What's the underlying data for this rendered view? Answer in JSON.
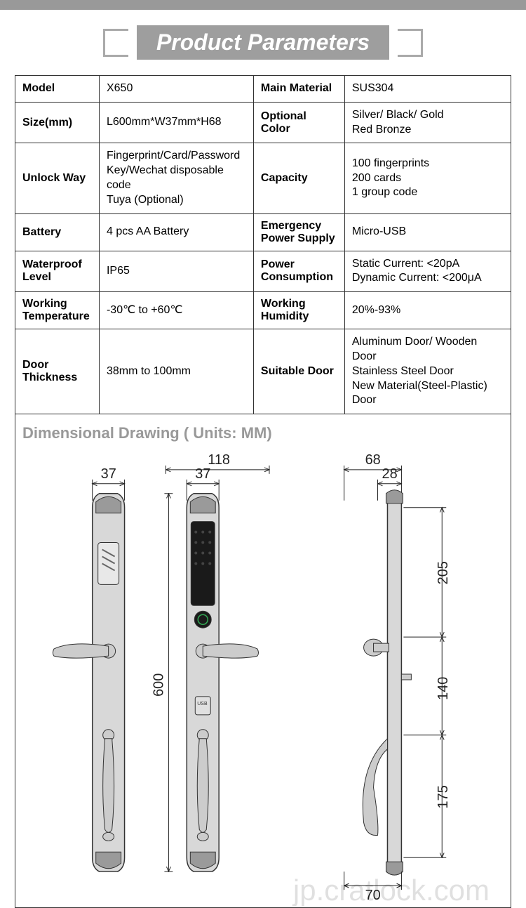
{
  "header": {
    "title": "Product Parameters"
  },
  "specs": {
    "rows": [
      {
        "k1": "Model",
        "v1": "X650",
        "k2": "Main Material",
        "v2": "SUS304"
      },
      {
        "k1": "Size(mm)",
        "v1": "L600mm*W37mm*H68",
        "k2": "Optional Color",
        "v2": "Silver/ Black/ Gold\nRed Bronze"
      },
      {
        "k1": "Unlock Way",
        "v1": "Fingerprint/Card/Password\nKey/Wechat disposable code\nTuya (Optional)",
        "k2": "Capacity",
        "v2": "100 fingerprints\n200 cards\n1 group code"
      },
      {
        "k1": "Battery",
        "v1": "4 pcs AA Battery",
        "k2": "Emergency Power Supply",
        "v2": "Micro-USB"
      },
      {
        "k1": "Waterproof Level",
        "v1": "IP65",
        "k2": "Power Consumption",
        "v2": "Static Current: <20pA\nDynamic Current: <200μA"
      },
      {
        "k1": "Working Temperature",
        "v1": "-30℃ to +60℃",
        "k2": "Working Humidity",
        "v2": "20%-93%"
      },
      {
        "k1": "Door Thickness",
        "v1": "38mm to 100mm",
        "k2": "Suitable Door",
        "v2": "Aluminum Door/ Wooden Door\nStainless Steel Door\nNew Material(Steel-Plastic) Door"
      }
    ]
  },
  "drawing": {
    "title": "Dimensional Drawing ( Units: MM)",
    "watermark": "jp.cratlock.com",
    "dims": {
      "w1": "37",
      "w2": "118",
      "w2_inner": "37",
      "h_total": "600",
      "d_top": "68",
      "d_inner": "28",
      "d_seg1": "205",
      "d_seg2": "140",
      "d_seg3": "175",
      "d_bottom": "70"
    },
    "colors": {
      "stroke": "#333333",
      "body_fill": "#d8d8d8",
      "body_dark": "#9a9a9a",
      "keypad_fill": "#1a1a1a",
      "handle_fill": "#cccccc",
      "dim_line": "#222222"
    }
  }
}
